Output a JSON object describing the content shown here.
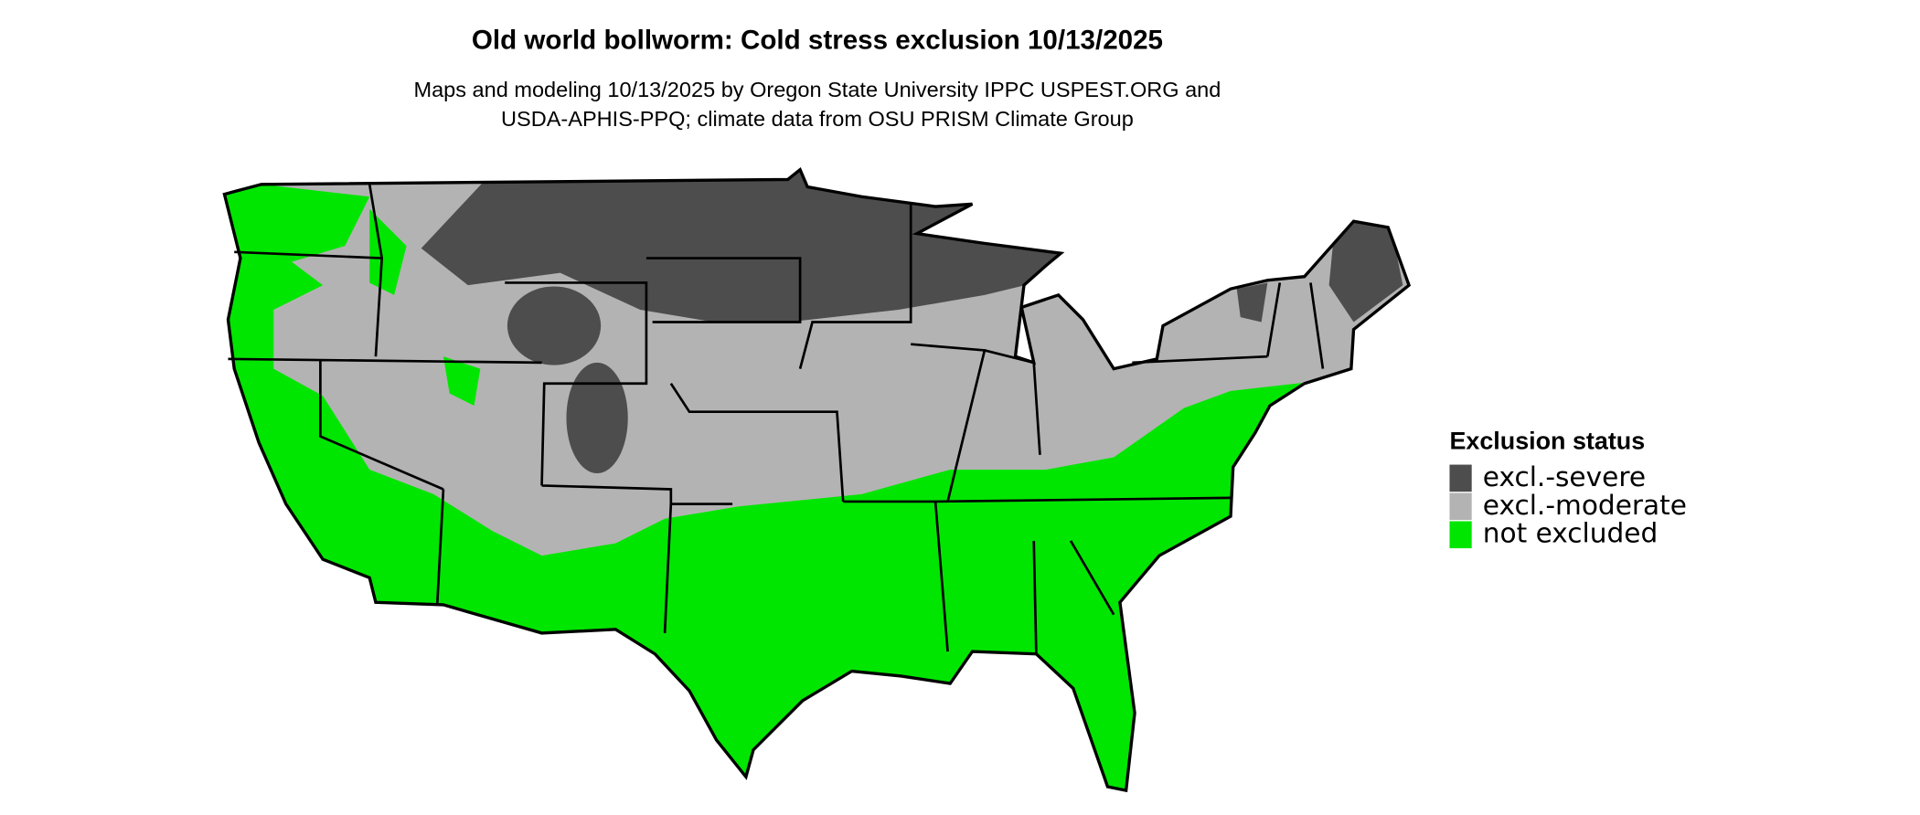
{
  "title": "Old world bollworm: Cold stress exclusion 10/13/2025",
  "subtitle_lines": [
    "Maps and modeling 10/13/2025 by Oregon State University IPPC USPEST.ORG and",
    "USDA-APHIS-PPQ; climate data from OSU PRISM Climate Group"
  ],
  "legend": {
    "title": "Exclusion status",
    "items": [
      {
        "label": "excl.-severe",
        "color": "#4d4d4d"
      },
      {
        "label": "excl.-moderate",
        "color": "#b3b3b3"
      },
      {
        "label": "not excluded",
        "color": "#00e600"
      }
    ]
  }
}
